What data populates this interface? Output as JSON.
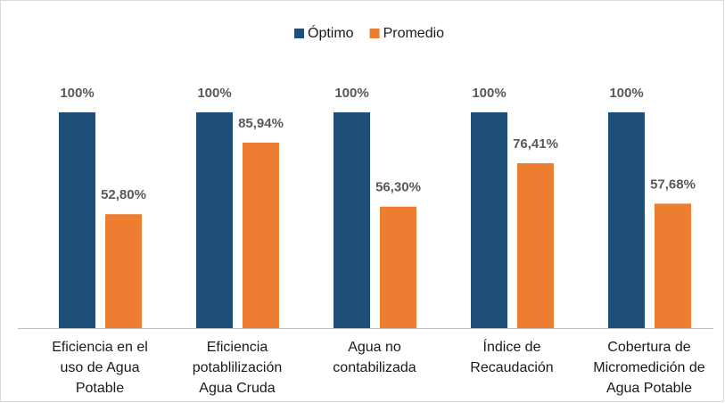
{
  "chart_data": {
    "type": "bar",
    "categories": [
      [
        "Eficiencia en el",
        "uso de Agua",
        "Potable"
      ],
      [
        "Eficiencia",
        "potablilización",
        "Agua Cruda"
      ],
      [
        "Agua no",
        "contabilizada"
      ],
      [
        "Índice de",
        "Recaudación"
      ],
      [
        "Cobertura de",
        "Micromedición de",
        "Agua Potable"
      ]
    ],
    "series": [
      {
        "name": "Óptimo",
        "color": "#1f4e79",
        "values": [
          100,
          100,
          100,
          100,
          100
        ],
        "value_labels": [
          "100%",
          "100%",
          "100%",
          "100%",
          "100%"
        ]
      },
      {
        "name": "Promedio",
        "color": "#ed7d31",
        "values": [
          52.8,
          85.94,
          56.3,
          76.41,
          57.68
        ],
        "value_labels": [
          "52,80%",
          "85,94%",
          "56,30%",
          "76,41%",
          "57,68%"
        ]
      }
    ],
    "ylim": [
      0,
      100
    ],
    "legend": "top"
  }
}
